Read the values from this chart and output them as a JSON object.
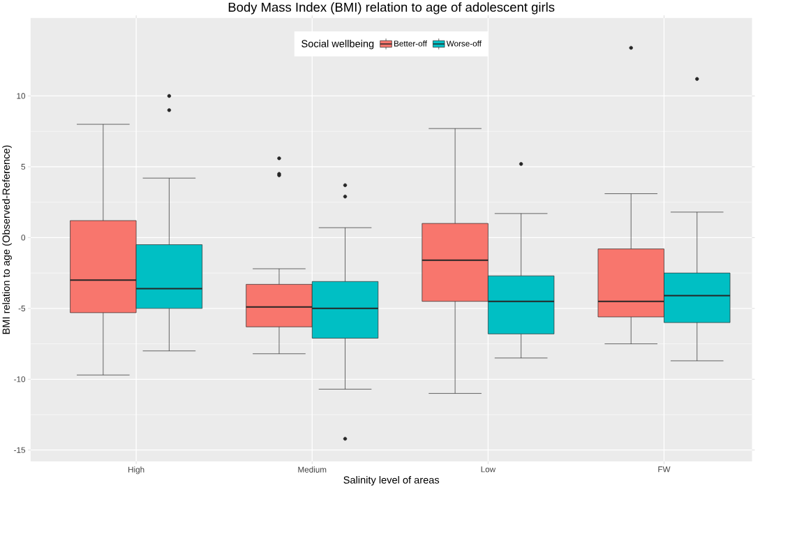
{
  "chart_data": {
    "type": "box",
    "title": "Body Mass Index (BMI) relation to age of adolescent girls",
    "xlabel": "Salinity level of areas",
    "ylabel": "BMI relation to age (Observed-Reference)",
    "legend_title": "Social wellbeing",
    "categories": [
      "High",
      "Medium",
      "Low",
      "FW"
    ],
    "series": [
      {
        "name": "Better-off",
        "color": "#f8766d",
        "boxes": [
          {
            "low": -9.7,
            "q1": -5.3,
            "median": -3.0,
            "q3": 1.2,
            "high": 8.0
          },
          {
            "low": -8.2,
            "q1": -6.3,
            "median": -4.9,
            "q3": -3.3,
            "high": -2.2,
            "outliers": [
              5.6,
              4.5,
              4.4
            ]
          },
          {
            "low": -11.0,
            "q1": -4.5,
            "median": -1.6,
            "q3": 1.0,
            "high": 7.7
          },
          {
            "low": -7.5,
            "q1": -5.6,
            "median": -4.5,
            "q3": -0.8,
            "high": 3.1,
            "outliers": [
              13.4
            ]
          }
        ]
      },
      {
        "name": "Worse-off",
        "color": "#00bfc4",
        "boxes": [
          {
            "low": -8.0,
            "q1": -5.0,
            "median": -3.6,
            "q3": -0.5,
            "high": 4.2,
            "outliers": [
              10.0,
              9.0
            ]
          },
          {
            "low": -10.7,
            "q1": -7.1,
            "median": -5.0,
            "q3": -3.1,
            "high": 0.7,
            "outliers": [
              3.7,
              2.9,
              -14.2
            ]
          },
          {
            "low": -8.5,
            "q1": -6.8,
            "median": -4.5,
            "q3": -2.7,
            "high": 1.7,
            "outliers": [
              5.2
            ]
          },
          {
            "low": -8.7,
            "q1": -6.0,
            "median": -4.1,
            "q3": -2.5,
            "high": 1.8,
            "outliers": [
              11.2
            ]
          }
        ]
      }
    ],
    "ylim": [
      -15.8,
      15.5
    ],
    "yticks": [
      -15,
      -10,
      -5,
      0,
      5,
      10
    ],
    "grid": true,
    "legend": "top"
  }
}
